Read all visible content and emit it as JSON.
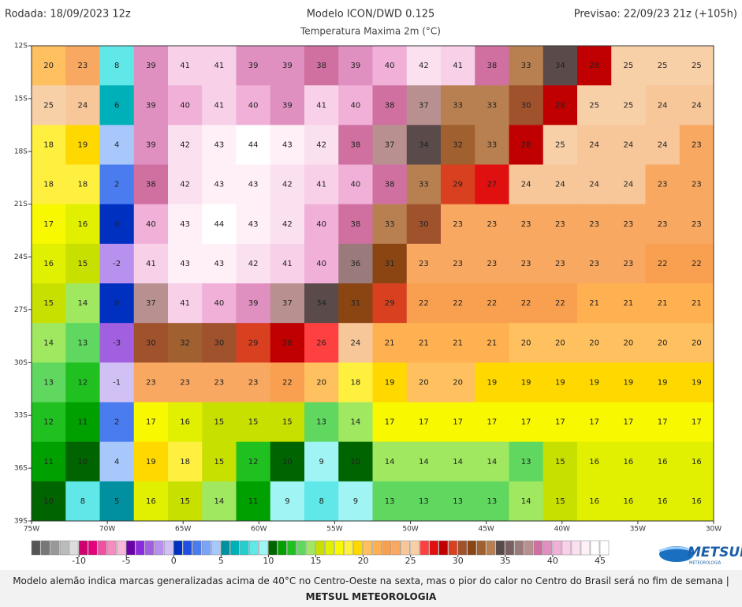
{
  "header": {
    "run": "Rodada: 18/09/2023 12z",
    "model": "Modelo ICON/DWD 0.125",
    "variable": "Temperatura Maxima 2m (°C)",
    "forecast": "Previsao: 22/09/23 21z (+105h)"
  },
  "map": {
    "lat_range": [
      -12,
      -39
    ],
    "lon_range": [
      -75,
      -30
    ],
    "lat_ticks": [
      {
        "value": -12,
        "label": "12S"
      },
      {
        "value": -15,
        "label": "15S"
      },
      {
        "value": -18,
        "label": "18S"
      },
      {
        "value": -21,
        "label": "21S"
      },
      {
        "value": -24,
        "label": "24S"
      },
      {
        "value": -27,
        "label": "27S"
      },
      {
        "value": -30,
        "label": "30S"
      },
      {
        "value": -33,
        "label": "33S"
      },
      {
        "value": -36,
        "label": "36S"
      },
      {
        "value": -39,
        "label": "39S"
      }
    ],
    "lon_ticks": [
      {
        "value": -75,
        "label": "75W"
      },
      {
        "value": -70,
        "label": "70W"
      },
      {
        "value": -65,
        "label": "65W"
      },
      {
        "value": -60,
        "label": "60W"
      },
      {
        "value": -55,
        "label": "55W"
      },
      {
        "value": -50,
        "label": "50W"
      },
      {
        "value": -45,
        "label": "45W"
      },
      {
        "value": -40,
        "label": "40W"
      },
      {
        "value": -35,
        "label": "35W"
      },
      {
        "value": -30,
        "label": "30W"
      }
    ],
    "grid": [
      [
        20,
        23,
        8,
        39,
        41,
        41,
        39,
        39,
        38,
        39,
        40,
        42,
        41,
        38,
        33,
        34,
        28,
        25,
        25,
        25
      ],
      [
        25,
        24,
        6,
        39,
        40,
        41,
        40,
        39,
        41,
        40,
        38,
        37,
        33,
        33,
        30,
        28,
        25,
        25,
        24,
        24
      ],
      [
        18,
        19,
        4,
        39,
        42,
        43,
        44,
        43,
        42,
        38,
        37,
        34,
        32,
        33,
        28,
        25,
        24,
        24,
        24,
        23
      ],
      [
        18,
        18,
        2,
        38,
        42,
        43,
        43,
        42,
        41,
        40,
        38,
        33,
        29,
        27,
        24,
        24,
        24,
        24,
        23,
        23
      ],
      [
        17,
        16,
        0,
        40,
        43,
        44,
        43,
        42,
        40,
        38,
        33,
        30,
        23,
        23,
        23,
        23,
        23,
        23,
        23,
        23
      ],
      [
        16,
        15,
        -2,
        41,
        43,
        43,
        42,
        41,
        40,
        36,
        31,
        23,
        23,
        23,
        23,
        23,
        23,
        23,
        22,
        22
      ],
      [
        15,
        14,
        0,
        37,
        41,
        40,
        39,
        37,
        34,
        31,
        29,
        22,
        22,
        22,
        22,
        22,
        21,
        21,
        21,
        21
      ],
      [
        14,
        13,
        -3,
        30,
        32,
        30,
        29,
        28,
        26,
        24,
        21,
        21,
        21,
        21,
        20,
        20,
        20,
        20,
        20,
        20
      ],
      [
        13,
        12,
        -1,
        23,
        23,
        23,
        23,
        22,
        20,
        18,
        19,
        20,
        20,
        19,
        19,
        19,
        19,
        19,
        19,
        19
      ],
      [
        12,
        11,
        2,
        17,
        16,
        15,
        15,
        15,
        13,
        14,
        17,
        17,
        17,
        17,
        17,
        17,
        17,
        17,
        17,
        17
      ],
      [
        11,
        10,
        4,
        19,
        18,
        15,
        12,
        10,
        9,
        10,
        14,
        14,
        14,
        14,
        13,
        15,
        16,
        16,
        16,
        16
      ],
      [
        10,
        8,
        5,
        16,
        15,
        14,
        11,
        9,
        8,
        9,
        13,
        13,
        13,
        13,
        14,
        15,
        16,
        16,
        16,
        16
      ]
    ]
  },
  "colorbar": {
    "range": [
      -15,
      46
    ],
    "ticks": [
      -10,
      -5,
      0,
      5,
      10,
      15,
      20,
      25,
      30,
      35,
      40,
      45
    ],
    "colors": [
      "#555555",
      "#777777",
      "#999999",
      "#bbbbbb",
      "#dddddd",
      "#d0006f",
      "#e6007e",
      "#f050a0",
      "#f48cc0",
      "#f8b8d8",
      "#6a00a8",
      "#8a2be2",
      "#a060e0",
      "#b890ee",
      "#d0c0f4",
      "#0030c0",
      "#2050e0",
      "#4a7cf0",
      "#7aa4f8",
      "#a8c8fc",
      "#0090a0",
      "#00b0b8",
      "#20d0d0",
      "#60e8e8",
      "#a0f4f4",
      "#006400",
      "#00a000",
      "#20c020",
      "#60d860",
      "#a0e860",
      "#c8e000",
      "#e0f000",
      "#f8f800",
      "#fff040",
      "#ffd800",
      "#ffc060",
      "#ffb050",
      "#f9a050",
      "#f8a860",
      "#f7c79a",
      "#f8d0a8",
      "#ff4040",
      "#e01010",
      "#c00000",
      "#d84020",
      "#a0522d",
      "#8b4513",
      "#a06030",
      "#b88050",
      "#5a4a4a",
      "#7a6060",
      "#9a7a7a",
      "#b89090",
      "#d070a0",
      "#e090c0",
      "#f0b0d8",
      "#f8d0e8",
      "#fbe0f0",
      "#fff0f8",
      "#ffffff",
      "#ffffff"
    ]
  },
  "logo": {
    "name": "METSUL",
    "tagline": "METEOROLOGIA"
  },
  "footer": {
    "caption": "Modelo alemão indica marcas generalizadas acima de 40°C no Centro-Oeste na sexta, mas o pior do calor no Centro do Brasil será no fim de semana | ",
    "caption_bold": "METSUL METEOROLOGIA"
  }
}
